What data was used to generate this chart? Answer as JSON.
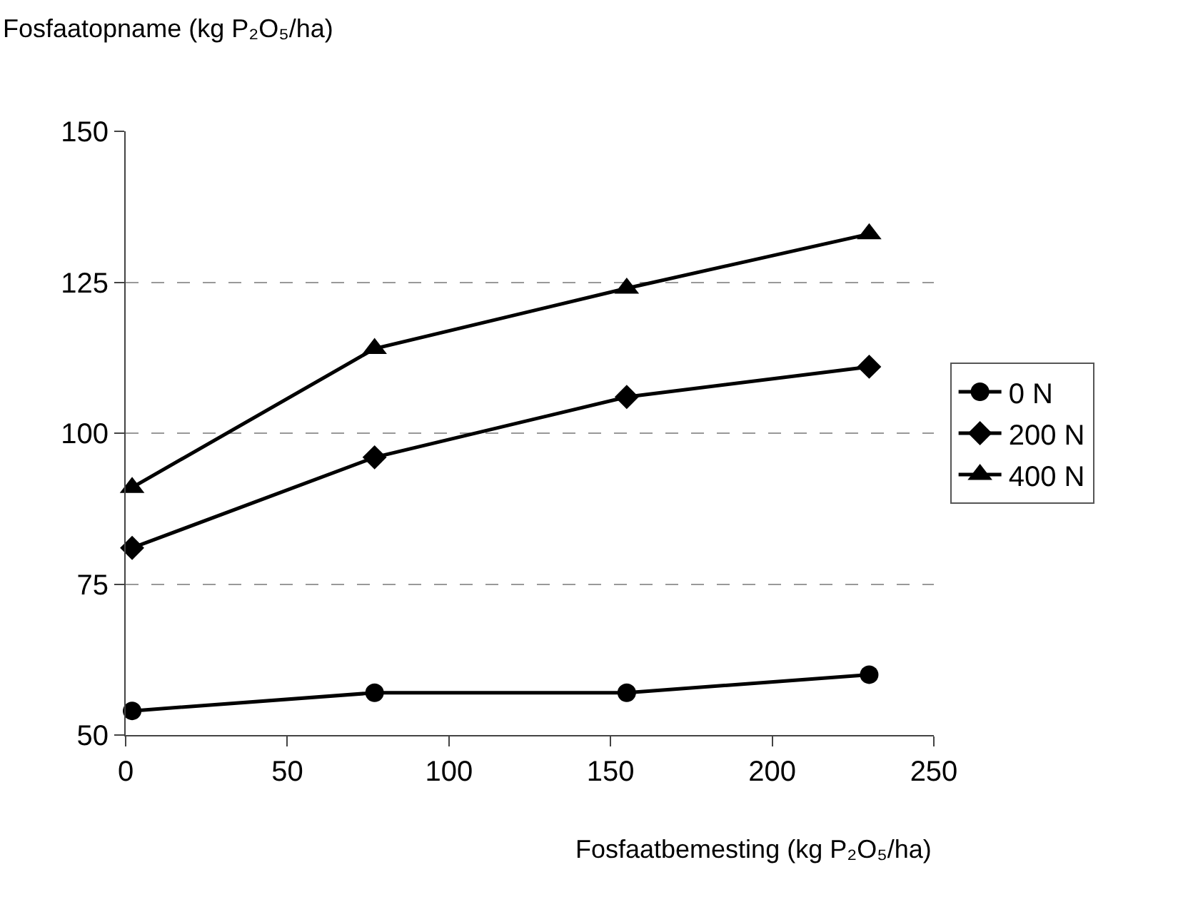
{
  "chart_data": {
    "type": "line",
    "ylabel": "Fosfaatopname (kg P₂O₅/ha)",
    "xlabel": "Fosfaatbemesting (kg P₂O₅/ha)",
    "x": [
      2,
      77,
      155,
      230
    ],
    "series": [
      {
        "name": "0 N",
        "color": "#000000",
        "marker": "circle",
        "values": [
          54,
          57,
          57,
          60
        ]
      },
      {
        "name": "200 N",
        "color": "#000000",
        "marker": "diamond",
        "values": [
          81,
          96,
          106,
          111
        ]
      },
      {
        "name": "400 N",
        "color": "#000000",
        "marker": "triangle",
        "values": [
          91,
          114,
          124,
          133
        ]
      }
    ],
    "xlim": [
      0,
      250
    ],
    "xticks": [
      0,
      50,
      100,
      150,
      200,
      250
    ],
    "ylim": [
      50,
      150
    ],
    "yticks": [
      50,
      75,
      100,
      125,
      150
    ],
    "grid": "y",
    "legend": "right",
    "line_style": "solid"
  }
}
